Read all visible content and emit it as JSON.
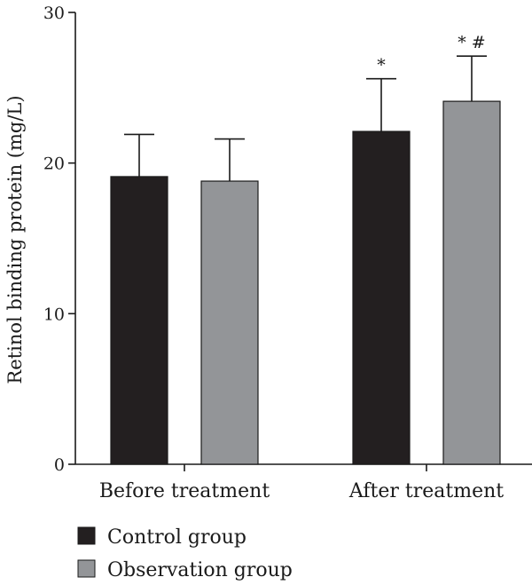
{
  "chart_data": {
    "type": "bar",
    "title": "",
    "xlabel": "",
    "ylabel": "Retinol binding protein (mg/L)",
    "ylim": [
      0,
      30
    ],
    "yticks": [
      0,
      10,
      20,
      30
    ],
    "grid": false,
    "legend_position": "bottom-left",
    "categories": [
      "Before treatment",
      "After treatment"
    ],
    "series": [
      {
        "name": "Control group",
        "color": "#231f20",
        "values": [
          19.1,
          22.1
        ],
        "errors": [
          2.8,
          3.5
        ],
        "annotations": [
          "",
          "*"
        ]
      },
      {
        "name": "Observation group",
        "color": "#939598",
        "values": [
          18.8,
          24.1
        ],
        "errors": [
          2.8,
          3.0
        ],
        "annotations": [
          "",
          "* #"
        ]
      }
    ]
  }
}
